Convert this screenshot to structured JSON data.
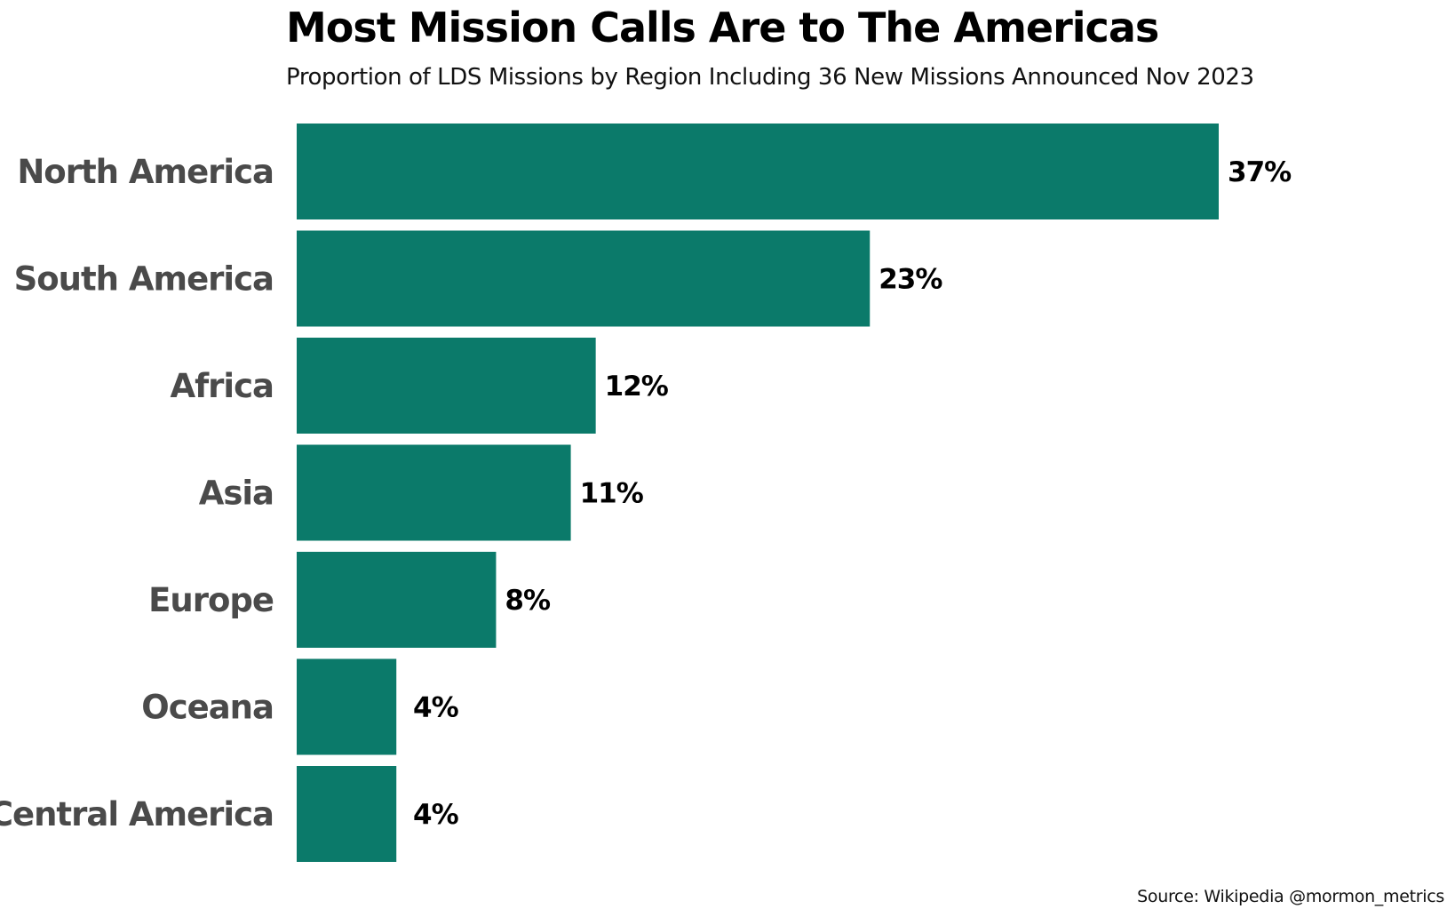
{
  "chart_data": {
    "type": "bar",
    "orientation": "horizontal",
    "title": "Most Mission Calls Are to The Americas",
    "subtitle": "Proportion of LDS Missions by Region Including 36 New Missions Announced Nov 2023",
    "source": "Source: Wikipedia @mormon_metrics",
    "categories": [
      "North America",
      "South America",
      "Africa",
      "Asia",
      "Europe",
      "Oceana",
      "Central America"
    ],
    "values": [
      37,
      23,
      12,
      11,
      8,
      4,
      4
    ],
    "value_labels": [
      "37%",
      "23%",
      "12%",
      "11%",
      "8%",
      "4%",
      "4%"
    ],
    "xlim": [
      0,
      37
    ],
    "grid": false,
    "legend": "none",
    "bar_color": "#0b7a6a"
  }
}
